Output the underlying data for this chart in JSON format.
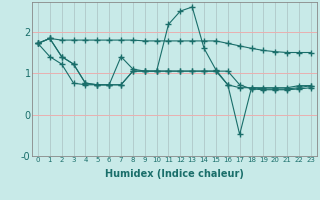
{
  "xlabel": "Humidex (Indice chaleur)",
  "background_color": "#c8eae8",
  "vgrid_color": "#b0c8c8",
  "hgrid_color": "#e8b0b0",
  "line_color": "#1a6e6a",
  "x_ticks": [
    0,
    1,
    2,
    3,
    4,
    5,
    6,
    7,
    8,
    9,
    10,
    11,
    12,
    13,
    14,
    15,
    16,
    17,
    18,
    19,
    20,
    21,
    22,
    23
  ],
  "y_ticks": [
    -1,
    0,
    1,
    2
  ],
  "y_tick_labels": [
    "-0",
    "0",
    "1",
    "2"
  ],
  "ylim": [
    -0.75,
    2.72
  ],
  "xlim": [
    -0.5,
    23.5
  ],
  "series1_x": [
    0,
    1,
    2,
    3,
    4,
    5,
    6,
    7,
    8,
    9,
    10,
    11,
    12,
    13,
    14,
    15,
    16,
    17,
    18,
    19,
    20,
    21,
    22,
    23
  ],
  "series1_y": [
    1.72,
    1.84,
    1.8,
    1.8,
    1.8,
    1.8,
    1.8,
    1.8,
    1.8,
    1.78,
    1.78,
    1.78,
    1.78,
    1.78,
    1.78,
    1.78,
    1.72,
    1.66,
    1.6,
    1.55,
    1.52,
    1.5,
    1.5,
    1.5
  ],
  "series2_x": [
    0,
    1,
    2,
    3,
    4,
    5,
    6,
    7,
    8,
    9,
    10,
    11,
    12,
    13,
    14,
    15,
    16,
    17,
    18,
    19,
    20,
    21,
    22,
    23
  ],
  "series2_y": [
    1.72,
    1.4,
    1.22,
    0.76,
    0.72,
    0.72,
    0.72,
    1.4,
    1.1,
    1.05,
    1.05,
    2.18,
    2.5,
    2.6,
    1.6,
    1.08,
    0.72,
    0.65,
    0.65,
    0.65,
    0.65,
    0.65,
    0.7,
    0.7
  ],
  "series3_x": [
    0,
    1,
    2,
    3,
    4,
    5,
    6,
    7,
    8,
    9,
    10,
    11,
    12,
    13,
    14,
    15,
    16,
    17,
    18,
    19,
    20,
    21,
    22,
    23
  ],
  "series3_y": [
    1.72,
    1.84,
    1.4,
    1.22,
    0.76,
    0.72,
    0.72,
    0.72,
    1.05,
    1.05,
    1.05,
    1.05,
    1.05,
    1.05,
    1.05,
    1.05,
    1.05,
    0.72,
    0.62,
    0.6,
    0.6,
    0.6,
    0.62,
    0.65
  ],
  "series4_x": [
    0,
    1,
    2,
    3,
    4,
    5,
    6,
    7,
    8,
    9,
    10,
    11,
    12,
    13,
    14,
    15,
    16,
    17,
    18,
    19,
    20,
    21,
    22,
    23
  ],
  "series4_y": [
    1.72,
    1.84,
    1.4,
    1.22,
    0.76,
    0.72,
    0.72,
    0.72,
    1.05,
    1.05,
    1.05,
    1.05,
    1.05,
    1.05,
    1.05,
    1.05,
    0.72,
    -0.48,
    0.65,
    0.62,
    0.62,
    0.62,
    0.65,
    0.7
  ]
}
